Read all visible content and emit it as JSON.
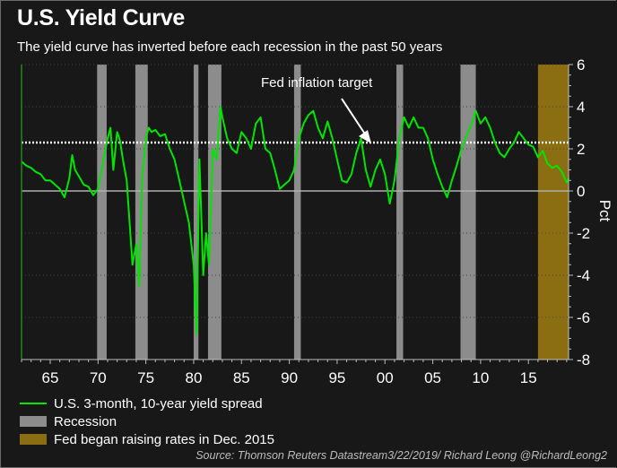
{
  "title": "U.S. Yield Curve",
  "subtitle": "The yield curve has inverted before each recession in the past 50 years",
  "source": "Source: Thomson Reuters Datastream3/22/2019/ Richard Leong @RichardLeong2",
  "colors": {
    "background": "#181818",
    "spread": "#00e600",
    "recession": "#8c8c8c",
    "fed": "#8b6d12",
    "target": "#ffffff"
  },
  "chart_data": {
    "type": "line",
    "title": "U.S. Yield Curve",
    "xlabel": "",
    "ylabel": "Pct",
    "xlim": [
      1962.0,
      2019.2
    ],
    "ylim": [
      -8,
      6
    ],
    "x_ticks": [
      1965,
      1970,
      1975,
      1980,
      1985,
      1990,
      1995,
      2000,
      2005,
      2010,
      2015
    ],
    "x_tick_labels": [
      "65",
      "70",
      "75",
      "80",
      "85",
      "90",
      "95",
      "00",
      "05",
      "10",
      "15"
    ],
    "y_ticks": [
      6,
      4,
      2,
      0,
      -2,
      -4,
      -6,
      -8
    ],
    "y_tick_labels": [
      "6",
      "4",
      "2",
      "0",
      "-2",
      "-4",
      "-6",
      "-8"
    ],
    "grid": true,
    "legend_position": "bottom-left",
    "reference_line": {
      "label": "Fed inflation target",
      "value": 2.3
    },
    "zero_line": 0,
    "recessions": [
      [
        1969.9,
        1970.9
      ],
      [
        1973.9,
        1975.2
      ],
      [
        1980.0,
        1980.5
      ],
      [
        1981.5,
        1982.9
      ],
      [
        1990.5,
        1991.2
      ],
      [
        2001.2,
        2001.9
      ],
      [
        2007.9,
        2009.5
      ]
    ],
    "fed_hikes_period": [
      2016.0,
      2019.2
    ],
    "legend": [
      "U.S. 3-month, 10-year yield spread",
      "Recession",
      "Fed began raising rates in Dec. 2015"
    ],
    "series": [
      {
        "name": "U.S. 3-month, 10-year yield spread",
        "x": [
          1962.0,
          1962.5,
          1963.0,
          1963.5,
          1964.0,
          1964.5,
          1965.0,
          1965.5,
          1966.0,
          1966.5,
          1967.0,
          1967.3,
          1967.6,
          1968.0,
          1968.5,
          1969.0,
          1969.5,
          1970.0,
          1970.5,
          1971.0,
          1971.3,
          1971.6,
          1972.0,
          1972.3,
          1972.6,
          1973.0,
          1973.3,
          1973.6,
          1974.0,
          1974.3,
          1974.6,
          1975.0,
          1975.3,
          1975.6,
          1976.0,
          1976.5,
          1977.0,
          1977.5,
          1978.0,
          1978.5,
          1979.0,
          1979.5,
          1980.0,
          1980.3,
          1980.6,
          1981.0,
          1981.3,
          1981.6,
          1982.0,
          1982.4,
          1982.8,
          1983.0,
          1983.5,
          1984.0,
          1984.5,
          1985.0,
          1985.5,
          1986.0,
          1986.5,
          1987.0,
          1987.5,
          1988.0,
          1988.5,
          1989.0,
          1989.5,
          1990.0,
          1990.5,
          1991.0,
          1991.5,
          1992.0,
          1992.5,
          1993.0,
          1993.5,
          1994.0,
          1994.5,
          1995.0,
          1995.5,
          1996.0,
          1996.5,
          1997.0,
          1997.5,
          1998.0,
          1998.5,
          1999.0,
          1999.5,
          2000.0,
          2000.5,
          2001.0,
          2001.5,
          2002.0,
          2002.5,
          2003.0,
          2003.5,
          2004.0,
          2004.5,
          2005.0,
          2005.5,
          2006.0,
          2006.5,
          2007.0,
          2007.5,
          2008.0,
          2008.5,
          2009.0,
          2009.5,
          2010.0,
          2010.5,
          2011.0,
          2011.5,
          2012.0,
          2012.5,
          2013.0,
          2013.5,
          2014.0,
          2014.5,
          2015.0,
          2015.5,
          2016.0,
          2016.5,
          2017.0,
          2017.5,
          2018.0,
          2018.5,
          2019.0,
          2019.2
        ],
        "values": [
          1.4,
          1.2,
          1.1,
          0.9,
          0.8,
          0.5,
          0.5,
          0.3,
          0.1,
          -0.3,
          0.6,
          1.7,
          1.0,
          0.7,
          0.3,
          0.2,
          -0.2,
          0.1,
          1.3,
          2.5,
          3.0,
          1.0,
          2.8,
          2.4,
          1.5,
          0.5,
          -1.5,
          -3.5,
          -2.5,
          -4.5,
          0.5,
          2.5,
          3.0,
          2.8,
          2.9,
          2.6,
          2.7,
          2.0,
          1.5,
          0.5,
          -0.5,
          -1.5,
          -3.5,
          -6.8,
          1.5,
          -4.0,
          -2.0,
          -3.5,
          2.0,
          1.5,
          4.0,
          3.5,
          2.5,
          2.0,
          1.8,
          2.8,
          2.5,
          2.0,
          3.2,
          3.5,
          2.0,
          1.8,
          1.0,
          0.1,
          0.3,
          0.5,
          1.0,
          2.5,
          3.2,
          3.6,
          3.8,
          3.0,
          2.5,
          3.3,
          2.5,
          1.5,
          0.5,
          0.4,
          0.8,
          1.8,
          2.5,
          1.0,
          0.2,
          1.0,
          1.5,
          0.8,
          -0.6,
          0.5,
          2.5,
          3.5,
          3.0,
          3.5,
          3.0,
          3.0,
          2.5,
          1.5,
          0.8,
          0.2,
          -0.3,
          0.5,
          1.2,
          2.0,
          2.6,
          3.1,
          3.8,
          3.2,
          3.5,
          3.0,
          2.3,
          1.8,
          1.6,
          2.0,
          2.3,
          2.8,
          2.5,
          2.2,
          2.1,
          1.6,
          1.9,
          1.3,
          1.1,
          1.2,
          0.9,
          0.4,
          0.6
        ]
      }
    ]
  },
  "annotation": {
    "label": "Fed inflation target"
  },
  "legend_items": [
    {
      "label": "U.S. 3-month, 10-year yield spread"
    },
    {
      "label": "Recession"
    },
    {
      "label": "Fed began raising rates in Dec. 2015"
    }
  ]
}
